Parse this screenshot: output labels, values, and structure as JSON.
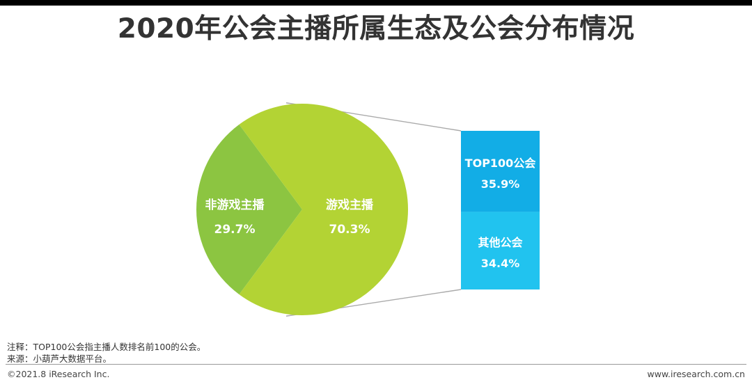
{
  "title": "2020年公会主播所属生态及公会分布情况",
  "chart_data": [
    {
      "type": "pie",
      "series": [
        {
          "name": "游戏主播",
          "value": 70.3,
          "label": "70.3%",
          "color": "#b3d334"
        },
        {
          "name": "非游戏主播",
          "value": 29.7,
          "label": "29.7%",
          "color": "#8cc541"
        }
      ]
    },
    {
      "type": "bar",
      "stacked": true,
      "series": [
        {
          "name": "TOP100公会",
          "value": 35.9,
          "label": "35.9%",
          "color": "#12ade6"
        },
        {
          "name": "其他公会",
          "value": 34.4,
          "label": "34.4%",
          "color": "#21c3ef"
        }
      ]
    }
  ],
  "footer": {
    "note": "注释：TOP100公会指主播人数排名前100的公会。",
    "source": "来源：小葫芦大数据平台。",
    "copyright": "©2021.8 iResearch Inc.",
    "website": "www.iresearch.com.cn"
  }
}
